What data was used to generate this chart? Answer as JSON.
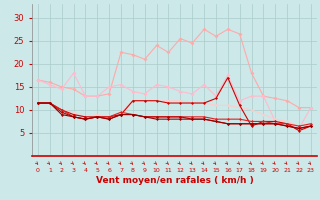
{
  "x": [
    0,
    1,
    2,
    3,
    4,
    5,
    6,
    7,
    8,
    9,
    10,
    11,
    12,
    13,
    14,
    15,
    16,
    17,
    18,
    19,
    20,
    21,
    22,
    23
  ],
  "series": [
    {
      "label": "rafales_light1",
      "color": "#ffaaaa",
      "lw": 0.8,
      "markersize": 2.0,
      "y": [
        16.5,
        16.0,
        15.0,
        14.5,
        13.0,
        13.0,
        13.5,
        22.5,
        22.0,
        21.0,
        24.0,
        22.5,
        25.5,
        24.5,
        27.5,
        26.0,
        27.5,
        26.5,
        18.0,
        13.0,
        12.5,
        12.0,
        10.5,
        10.5
      ]
    },
    {
      "label": "rafales_light2",
      "color": "#ffbbcc",
      "lw": 0.8,
      "markersize": 2.0,
      "y": [
        16.5,
        15.5,
        14.5,
        18.0,
        13.0,
        13.0,
        15.0,
        15.5,
        14.0,
        13.5,
        15.5,
        15.0,
        14.0,
        13.5,
        15.5,
        13.0,
        17.5,
        12.0,
        13.0,
        13.0,
        7.5,
        7.0,
        6.0,
        10.5
      ]
    },
    {
      "label": "vent_moyen_light",
      "color": "#ffcccc",
      "lw": 0.8,
      "markersize": 1.5,
      "y": [
        11.5,
        11.5,
        10.0,
        9.5,
        8.5,
        9.0,
        8.5,
        9.5,
        12.0,
        12.0,
        12.0,
        12.0,
        12.0,
        11.5,
        11.5,
        11.0,
        11.0,
        10.5,
        10.0,
        9.0,
        8.0,
        7.5,
        6.5,
        6.5
      ]
    },
    {
      "label": "vent_moyen_dark1",
      "color": "#cc0000",
      "lw": 0.8,
      "markersize": 1.5,
      "y": [
        11.5,
        11.5,
        10.0,
        9.0,
        8.5,
        8.5,
        8.5,
        9.0,
        12.0,
        12.0,
        12.0,
        11.5,
        11.5,
        11.5,
        11.5,
        12.5,
        17.0,
        11.0,
        6.5,
        7.5,
        7.5,
        7.0,
        5.5,
        6.5
      ]
    },
    {
      "label": "vent_moyen_dark2",
      "color": "#dd2222",
      "lw": 0.8,
      "markersize": 1.5,
      "y": [
        11.5,
        11.5,
        10.0,
        8.5,
        8.0,
        8.5,
        8.5,
        9.5,
        9.0,
        8.5,
        8.5,
        8.5,
        8.5,
        8.5,
        8.5,
        8.0,
        8.0,
        8.0,
        7.5,
        7.5,
        7.0,
        7.0,
        6.5,
        7.0
      ]
    },
    {
      "label": "vent_moyen_dark3",
      "color": "#bb0000",
      "lw": 0.8,
      "markersize": 1.5,
      "y": [
        11.5,
        11.5,
        9.5,
        8.5,
        8.0,
        8.5,
        8.0,
        9.0,
        9.0,
        8.5,
        8.5,
        8.5,
        8.5,
        8.0,
        8.0,
        7.5,
        7.0,
        7.0,
        7.0,
        7.0,
        7.0,
        6.5,
        6.0,
        6.5
      ]
    },
    {
      "label": "vent_moyen_dark4",
      "color": "#990000",
      "lw": 0.8,
      "markersize": 1.5,
      "y": [
        11.5,
        11.5,
        9.0,
        8.5,
        8.0,
        8.5,
        8.0,
        9.0,
        9.0,
        8.5,
        8.0,
        8.0,
        8.0,
        8.0,
        8.0,
        7.5,
        7.0,
        7.0,
        7.0,
        7.0,
        7.0,
        6.5,
        6.0,
        6.5
      ]
    }
  ],
  "xlim": [
    -0.5,
    23.5
  ],
  "ylim": [
    0,
    33
  ],
  "yticks": [
    5,
    10,
    15,
    20,
    25,
    30
  ],
  "xtick_labels": [
    "0",
    "1",
    "2",
    "3",
    "4",
    "5",
    "6",
    "7",
    "8",
    "9",
    "10",
    "11",
    "12",
    "13",
    "14",
    "15",
    "16",
    "17",
    "18",
    "19",
    "20",
    "21",
    "22",
    "23"
  ],
  "xlabel": "Vent moyen/en rafales ( km/h )",
  "xlabel_color": "#cc0000",
  "xlabel_fontsize": 6.5,
  "ytick_fontsize": 6,
  "xtick_fontsize": 4.5,
  "background_color": "#cce8e8",
  "grid_color": "#aacccc",
  "tick_color": "#cc0000",
  "arrow_color": "#cc0000"
}
